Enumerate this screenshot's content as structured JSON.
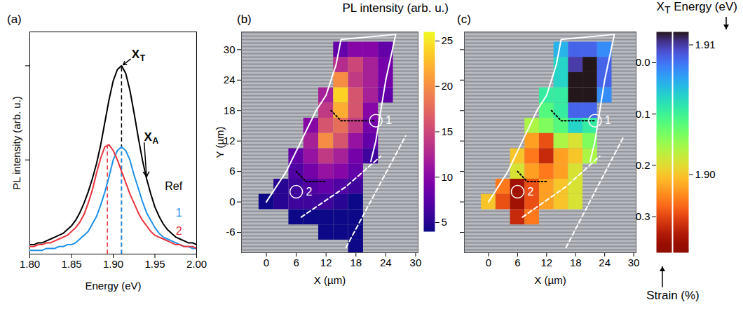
{
  "chart_data": [
    {
      "type": "line",
      "title": "(a)",
      "x_label": "Energy (eV)",
      "y_label": "PL intensity (arb. u.)",
      "x": [
        1.8,
        1.805,
        1.81,
        1.815,
        1.82,
        1.825,
        1.83,
        1.835,
        1.84,
        1.845,
        1.85,
        1.855,
        1.86,
        1.865,
        1.87,
        1.875,
        1.88,
        1.885,
        1.89,
        1.895,
        1.9,
        1.905,
        1.91,
        1.915,
        1.92,
        1.925,
        1.93,
        1.935,
        1.94,
        1.945,
        1.95,
        1.955,
        1.96,
        1.965,
        1.97,
        1.975,
        1.98,
        1.985,
        1.99,
        1.995,
        2.0
      ],
      "xlim": [
        1.8,
        2.0
      ],
      "xticks": [
        {
          "value": 1.8,
          "label": "1.80"
        },
        {
          "value": 1.85,
          "label": "1.85"
        },
        {
          "value": 1.9,
          "label": "1.90"
        },
        {
          "value": 1.95,
          "label": "1.95"
        },
        {
          "value": 2.0,
          "label": "2.00"
        }
      ],
      "ylim": [
        0,
        1.18
      ],
      "yticks": [
        0.5,
        1
      ],
      "tick_labels": "x",
      "series": [
        {
          "name": "Ref",
          "color": "#000000",
          "label_xy": [
            1.962,
            0.36
          ],
          "values": [
            0.05,
            0.05,
            0.06,
            0.06,
            0.07,
            0.08,
            0.09,
            0.1,
            0.11,
            0.13,
            0.15,
            0.18,
            0.22,
            0.27,
            0.33,
            0.4,
            0.48,
            0.58,
            0.7,
            0.82,
            0.92,
            0.98,
            1.0,
            0.96,
            0.87,
            0.75,
            0.62,
            0.5,
            0.4,
            0.32,
            0.25,
            0.2,
            0.16,
            0.13,
            0.11,
            0.09,
            0.08,
            0.07,
            0.06,
            0.06,
            0.05
          ]
        },
        {
          "name": "1",
          "color": "#1e90e8",
          "label_xy": [
            1.975,
            0.22
          ],
          "values": [
            0.02,
            0.02,
            0.02,
            0.02,
            0.03,
            0.03,
            0.03,
            0.04,
            0.04,
            0.05,
            0.05,
            0.06,
            0.08,
            0.1,
            0.12,
            0.16,
            0.2,
            0.26,
            0.33,
            0.41,
            0.5,
            0.55,
            0.57,
            0.55,
            0.5,
            0.42,
            0.35,
            0.28,
            0.22,
            0.18,
            0.14,
            0.11,
            0.09,
            0.08,
            0.07,
            0.06,
            0.05,
            0.04,
            0.04,
            0.03,
            0.03
          ]
        },
        {
          "name": "2",
          "color": "#e8333c",
          "label_xy": [
            1.975,
            0.12
          ],
          "values": [
            0.04,
            0.04,
            0.05,
            0.05,
            0.06,
            0.06,
            0.07,
            0.08,
            0.09,
            0.1,
            0.12,
            0.14,
            0.17,
            0.21,
            0.27,
            0.34,
            0.43,
            0.51,
            0.57,
            0.58,
            0.55,
            0.5,
            0.44,
            0.38,
            0.32,
            0.27,
            0.22,
            0.18,
            0.15,
            0.12,
            0.1,
            0.09,
            0.08,
            0.07,
            0.06,
            0.05,
            0.05,
            0.04,
            0.04,
            0.04,
            0.03
          ]
        }
      ],
      "vlines": [
        {
          "x": 1.91,
          "y": 1.0,
          "color": "#000000",
          "line_style": "dashed"
        },
        {
          "x": 1.91,
          "y": 0.57,
          "color": "#1e90e8",
          "line_style": "dashed"
        },
        {
          "x": 1.893,
          "y": 0.58,
          "color": "#e8333c",
          "line_style": "dashed"
        }
      ],
      "annotations": [
        {
          "text": "X",
          "subscript": "T",
          "x": 1.922,
          "y": 1.04,
          "target": [
            1.912,
            1.005
          ]
        },
        {
          "text": "X",
          "subscript": "A",
          "x": 1.937,
          "y": 0.6,
          "target": [
            1.94,
            0.41
          ]
        }
      ]
    },
    {
      "type": "heatmap",
      "title": "(b)",
      "x_label": "X (µm)",
      "y_label": "Y (µm)",
      "xlim": [
        -5,
        30.5
      ],
      "xticks": [
        0,
        6,
        12,
        18,
        24,
        30
      ],
      "ylim": [
        -10,
        33.5
      ],
      "yticks": [
        -6,
        0,
        6,
        12,
        18,
        24,
        30
      ],
      "color": "plasma",
      "x": [
        0,
        3,
        6,
        9,
        12,
        15,
        18,
        21,
        24,
        27
      ],
      "y": [
        30,
        27,
        24,
        21,
        18,
        15,
        12,
        9,
        6,
        3,
        0,
        -3,
        -6,
        -9
      ],
      "values": [
        [
          null,
          null,
          null,
          null,
          null,
          8,
          10,
          10,
          8,
          null
        ],
        [
          null,
          null,
          null,
          null,
          null,
          13,
          15,
          12,
          9,
          null
        ],
        [
          null,
          null,
          null,
          null,
          null,
          20,
          14,
          12,
          9,
          null
        ],
        [
          null,
          null,
          null,
          null,
          12,
          24,
          16,
          12,
          8,
          null
        ],
        [
          null,
          null,
          null,
          null,
          14,
          22,
          16,
          10,
          null,
          null
        ],
        [
          null,
          null,
          null,
          10,
          16,
          18,
          14,
          9,
          null,
          null
        ],
        [
          null,
          null,
          null,
          12,
          20,
          16,
          11,
          8,
          null,
          null
        ],
        [
          null,
          null,
          8,
          11,
          14,
          12,
          9,
          6,
          null,
          null
        ],
        [
          null,
          null,
          7,
          9,
          11,
          10,
          8,
          null,
          null,
          null
        ],
        [
          null,
          5,
          6,
          7,
          8,
          7,
          6,
          null,
          null,
          null
        ],
        [
          4,
          5,
          6,
          6,
          6,
          5,
          4,
          null,
          null,
          null
        ],
        [
          null,
          null,
          4,
          4,
          4,
          4,
          4,
          null,
          null,
          null
        ],
        [
          null,
          null,
          null,
          null,
          4,
          4,
          4,
          null,
          null,
          null
        ],
        [
          null,
          null,
          null,
          null,
          null,
          null,
          4,
          null,
          null,
          null
        ]
      ],
      "colorbar": {
        "label": "PL intensity (arb. u.)",
        "range": [
          4,
          26
        ],
        "ticks": [
          5,
          10,
          15,
          20,
          25
        ]
      },
      "lines": [
        {
          "color": "#ffffff",
          "line_style": "solid",
          "points": [
            [
              0,
              0
            ],
            [
              4,
              6
            ],
            [
              7,
              12
            ],
            [
              10,
              18
            ],
            [
              12,
              21
            ],
            [
              13,
              24
            ],
            [
              14,
              27
            ],
            [
              15,
              32
            ],
            [
              26,
              33
            ],
            [
              24,
              24
            ],
            [
              22,
              12
            ],
            [
              21,
              8
            ]
          ]
        },
        {
          "color": "#ffffff",
          "line_style": "dashed",
          "points": [
            [
              7,
              -3
            ],
            [
              16,
              3
            ],
            [
              23,
              9
            ]
          ]
        },
        {
          "color": "#ffffff",
          "line_style": "dashed",
          "points": [
            [
              16,
              -9
            ],
            [
              22,
              2
            ],
            [
              28,
              13
            ]
          ]
        },
        {
          "color": "#000000",
          "line_style": "dotted",
          "points": [
            [
              13,
              18
            ],
            [
              15,
              16
            ],
            [
              17,
              16
            ],
            [
              22,
              16
            ]
          ]
        },
        {
          "color": "#000000",
          "line_style": "dotted",
          "points": [
            [
              6,
              6
            ],
            [
              8,
              4
            ],
            [
              12,
              4
            ]
          ]
        }
      ],
      "markers": [
        {
          "label": "1",
          "x": 22,
          "y": 16
        },
        {
          "label": "2",
          "x": 6,
          "y": 2
        }
      ]
    },
    {
      "type": "heatmap",
      "title": "(c)",
      "x_label": "X (µm)",
      "xlim": [
        -5,
        30.5
      ],
      "xticks": [
        0,
        6,
        12,
        18,
        24,
        30
      ],
      "ylim": [
        -10,
        33.5
      ],
      "yticks": [
        -6,
        0,
        6,
        12,
        18,
        24,
        30
      ],
      "tick_labels": "x",
      "color": "turbo",
      "x": [
        0,
        3,
        6,
        9,
        12,
        15,
        18,
        21,
        24,
        27
      ],
      "y": [
        30,
        27,
        24,
        21,
        18,
        15,
        12,
        9,
        6,
        3,
        0,
        -3,
        -6,
        -9
      ],
      "values": [
        [
          null,
          null,
          null,
          null,
          null,
          1.907,
          1.909,
          1.909,
          1.908,
          null
        ],
        [
          null,
          null,
          null,
          null,
          null,
          1.906,
          1.91,
          1.911,
          1.909,
          null
        ],
        [
          null,
          null,
          null,
          null,
          null,
          1.906,
          1.911,
          1.911,
          1.909,
          null
        ],
        [
          null,
          null,
          null,
          null,
          1.905,
          1.905,
          1.911,
          1.911,
          1.908,
          null
        ],
        [
          null,
          null,
          null,
          null,
          1.904,
          1.905,
          1.909,
          1.909,
          null,
          null
        ],
        [
          null,
          null,
          null,
          1.902,
          1.903,
          1.904,
          1.906,
          1.905,
          null,
          null
        ],
        [
          null,
          null,
          null,
          1.899,
          1.897,
          1.902,
          1.901,
          1.903,
          null,
          null
        ],
        [
          null,
          null,
          1.9,
          1.898,
          1.896,
          1.899,
          1.9,
          1.902,
          null,
          null
        ],
        [
          null,
          null,
          1.901,
          1.899,
          1.898,
          1.899,
          1.901,
          null,
          null,
          null
        ],
        [
          null,
          1.898,
          1.895,
          1.897,
          1.899,
          1.9,
          1.901,
          null,
          null,
          null
        ],
        [
          1.9,
          1.897,
          1.895,
          1.897,
          1.899,
          1.9,
          1.901,
          null,
          null,
          null
        ],
        [
          null,
          null,
          1.896,
          1.898,
          null,
          null,
          null,
          null,
          null,
          null
        ],
        [
          null,
          null,
          null,
          null,
          null,
          null,
          null,
          null,
          null,
          null
        ],
        [
          null,
          null,
          null,
          null,
          null,
          null,
          null,
          null,
          null,
          null
        ]
      ],
      "colorbar": {
        "label": {
          "text": "X",
          "subscript": "T",
          "suffix": " Energy (eV)"
        },
        "range": [
          1.894,
          1.911
        ],
        "ticks": [
          {
            "value": 1.9,
            "label": "1.90"
          },
          1.91
        ]
      },
      "strain_bar": {
        "label": "Strain (%)",
        "range": [
          -0.06,
          0.37
        ],
        "ticks": [
          {
            "value": 0,
            "label": "0.0"
          },
          0.1,
          0.2,
          0.3
        ]
      },
      "lines": [
        {
          "color": "#ffffff",
          "line_style": "solid",
          "points": [
            [
              0,
              0
            ],
            [
              4,
              6
            ],
            [
              7,
              12
            ],
            [
              10,
              18
            ],
            [
              12,
              21
            ],
            [
              13,
              24
            ],
            [
              14,
              27
            ],
            [
              15,
              32
            ],
            [
              26,
              33
            ],
            [
              24,
              24
            ],
            [
              22,
              12
            ],
            [
              21,
              8
            ]
          ]
        },
        {
          "color": "#ffffff",
          "line_style": "dashed",
          "points": [
            [
              7,
              -3
            ],
            [
              16,
              3
            ],
            [
              23,
              9
            ]
          ]
        },
        {
          "color": "#ffffff",
          "line_style": "dashed",
          "points": [
            [
              16,
              -9
            ],
            [
              22,
              2
            ],
            [
              28,
              13
            ]
          ]
        },
        {
          "color": "#000000",
          "line_style": "dotted",
          "points": [
            [
              13,
              18
            ],
            [
              15,
              16
            ],
            [
              17,
              16
            ],
            [
              22,
              16
            ]
          ]
        },
        {
          "color": "#000000",
          "line_style": "dotted",
          "points": [
            [
              6,
              6
            ],
            [
              8,
              4
            ],
            [
              12,
              4
            ]
          ]
        }
      ],
      "markers": [
        {
          "label": "1",
          "x": 22,
          "y": 16
        },
        {
          "label": "2",
          "x": 6,
          "y": 2
        }
      ]
    }
  ]
}
